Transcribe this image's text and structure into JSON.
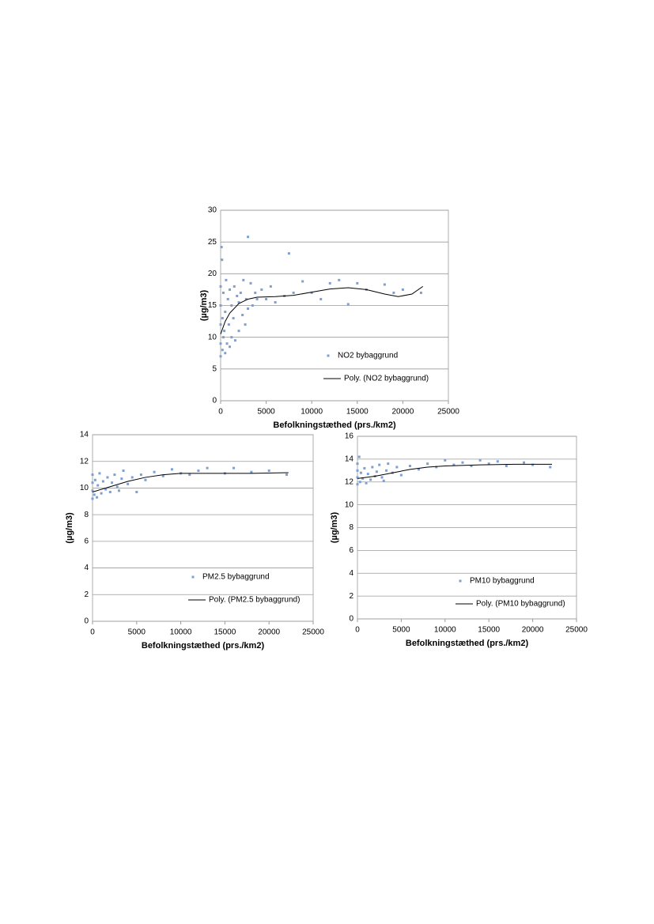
{
  "chart_data": [
    {
      "type": "scatter",
      "xlabel": "Befolkningstæthed (prs./km2)",
      "ylabel": "(µg/m3)",
      "xlim": [
        0,
        25000
      ],
      "ylim": [
        0,
        30
      ],
      "xticks": [
        0,
        5000,
        10000,
        15000,
        20000,
        25000
      ],
      "yticks": [
        0,
        5,
        10,
        15,
        20,
        25,
        30
      ],
      "grid": true,
      "series": [
        {
          "name": "NO2 bybaggrund",
          "type": "scatter",
          "color": "#7aa0d6",
          "x": [
            0,
            0,
            0,
            0,
            0,
            100,
            150,
            200,
            200,
            300,
            300,
            400,
            500,
            500,
            600,
            700,
            800,
            900,
            1000,
            1000,
            1200,
            1200,
            1400,
            1500,
            1600,
            1800,
            2000,
            2000,
            2200,
            2400,
            2500,
            2700,
            2800,
            3000,
            3000,
            3300,
            3500,
            3800,
            4000,
            4500,
            5000,
            5500,
            6000,
            7000,
            7500,
            8000,
            9000,
            10000,
            11000,
            12000,
            13000,
            14000,
            15000,
            16000,
            18000,
            19000,
            20000,
            22000
          ],
          "values": [
            7,
            9,
            12,
            15,
            18,
            24.2,
            22.2,
            8,
            13,
            10,
            17,
            11,
            7.5,
            14,
            19,
            9,
            16,
            12,
            8.5,
            17.5,
            10,
            15,
            13,
            18,
            9.5,
            16.5,
            11,
            15.5,
            17,
            13.5,
            19,
            12,
            16,
            25.8,
            14.5,
            18.5,
            15,
            17,
            16,
            17.5,
            16,
            18,
            15.5,
            16.5,
            23.2,
            17,
            18.8,
            17,
            16,
            18.5,
            19,
            15.2,
            18.5,
            17.5,
            18.3,
            17,
            17.5,
            17
          ]
        },
        {
          "name": "Poly. (NO2 bybaggrund)",
          "type": "line",
          "color": "#000000",
          "x": [
            0,
            500,
            1000,
            2000,
            3000,
            4000,
            6000,
            8000,
            10000,
            12000,
            14000,
            16000,
            18000,
            19500,
            21000,
            22200
          ],
          "values": [
            10.5,
            12.5,
            13.8,
            15.3,
            16.0,
            16.3,
            16.4,
            16.6,
            17.1,
            17.6,
            17.8,
            17.5,
            16.8,
            16.4,
            16.8,
            18.0
          ]
        }
      ]
    },
    {
      "type": "scatter",
      "xlabel": "Befolkningstæthed (prs./km2)",
      "ylabel": "(µg/m3)",
      "xlim": [
        0,
        25000
      ],
      "ylim": [
        0,
        14
      ],
      "xticks": [
        0,
        5000,
        10000,
        15000,
        20000,
        25000
      ],
      "yticks": [
        0,
        2,
        4,
        6,
        8,
        10,
        12,
        14
      ],
      "grid": true,
      "series": [
        {
          "name": "PM2.5 bybaggrund",
          "type": "scatter",
          "color": "#7aa0d6",
          "x": [
            0,
            0,
            0,
            0,
            200,
            300,
            500,
            600,
            800,
            1000,
            1200,
            1500,
            1700,
            2000,
            2200,
            2500,
            2800,
            3000,
            3300,
            3500,
            4000,
            4500,
            5000,
            5500,
            6000,
            7000,
            8000,
            9000,
            10000,
            11000,
            12000,
            13000,
            15000,
            16000,
            18000,
            20000,
            22000
          ],
          "values": [
            9.2,
            9.8,
            10.4,
            11.0,
            9.5,
            10.6,
            9.3,
            10.2,
            11.1,
            9.6,
            10.5,
            9.9,
            10.8,
            9.7,
            10.4,
            11.0,
            10.1,
            9.8,
            10.7,
            11.3,
            10.3,
            10.8,
            9.7,
            11.0,
            10.6,
            11.2,
            10.9,
            11.4,
            11.1,
            11.0,
            11.3,
            11.5,
            11.1,
            11.5,
            11.2,
            11.3,
            11.0
          ]
        },
        {
          "name": "Poly. (PM2.5 bybaggrund)",
          "type": "line",
          "color": "#000000",
          "x": [
            0,
            2000,
            4000,
            6000,
            8000,
            10000,
            14000,
            18000,
            22200
          ],
          "values": [
            9.7,
            10.1,
            10.5,
            10.8,
            11.0,
            11.1,
            11.1,
            11.1,
            11.15
          ]
        }
      ]
    },
    {
      "type": "scatter",
      "xlabel": "Befolkningstæthed (prs./km2)",
      "ylabel": "(µg/m3)",
      "xlim": [
        0,
        25000
      ],
      "ylim": [
        0,
        16
      ],
      "xticks": [
        0,
        5000,
        10000,
        15000,
        20000,
        25000
      ],
      "yticks": [
        0,
        2,
        4,
        6,
        8,
        10,
        12,
        14,
        16
      ],
      "grid": true,
      "series": [
        {
          "name": "PM10 bybaggrund",
          "type": "scatter",
          "color": "#7aa0d6",
          "x": [
            0,
            0,
            0,
            0,
            200,
            300,
            400,
            600,
            800,
            1000,
            1200,
            1500,
            1700,
            2000,
            2200,
            2500,
            2800,
            3000,
            3300,
            3500,
            4000,
            4500,
            5000,
            6000,
            7000,
            8000,
            9000,
            10000,
            11000,
            12000,
            13000,
            14000,
            15000,
            16000,
            17000,
            19000,
            20000,
            22000
          ],
          "values": [
            11.8,
            12.4,
            13.0,
            13.6,
            14.2,
            12.0,
            12.8,
            12.3,
            13.2,
            11.9,
            12.7,
            12.2,
            13.3,
            12.5,
            12.9,
            13.5,
            12.4,
            12.1,
            13.0,
            13.6,
            12.8,
            13.3,
            12.6,
            13.4,
            13.1,
            13.6,
            13.3,
            13.9,
            13.5,
            13.7,
            13.4,
            13.9,
            13.6,
            13.8,
            13.4,
            13.7,
            13.5,
            13.3
          ]
        },
        {
          "name": "Poly. (PM10 bybaggrund)",
          "type": "line",
          "color": "#000000",
          "x": [
            0,
            2000,
            4000,
            6000,
            8000,
            10000,
            14000,
            18000,
            22200
          ],
          "values": [
            12.3,
            12.5,
            12.8,
            13.1,
            13.3,
            13.4,
            13.5,
            13.55,
            13.55
          ]
        }
      ]
    }
  ]
}
